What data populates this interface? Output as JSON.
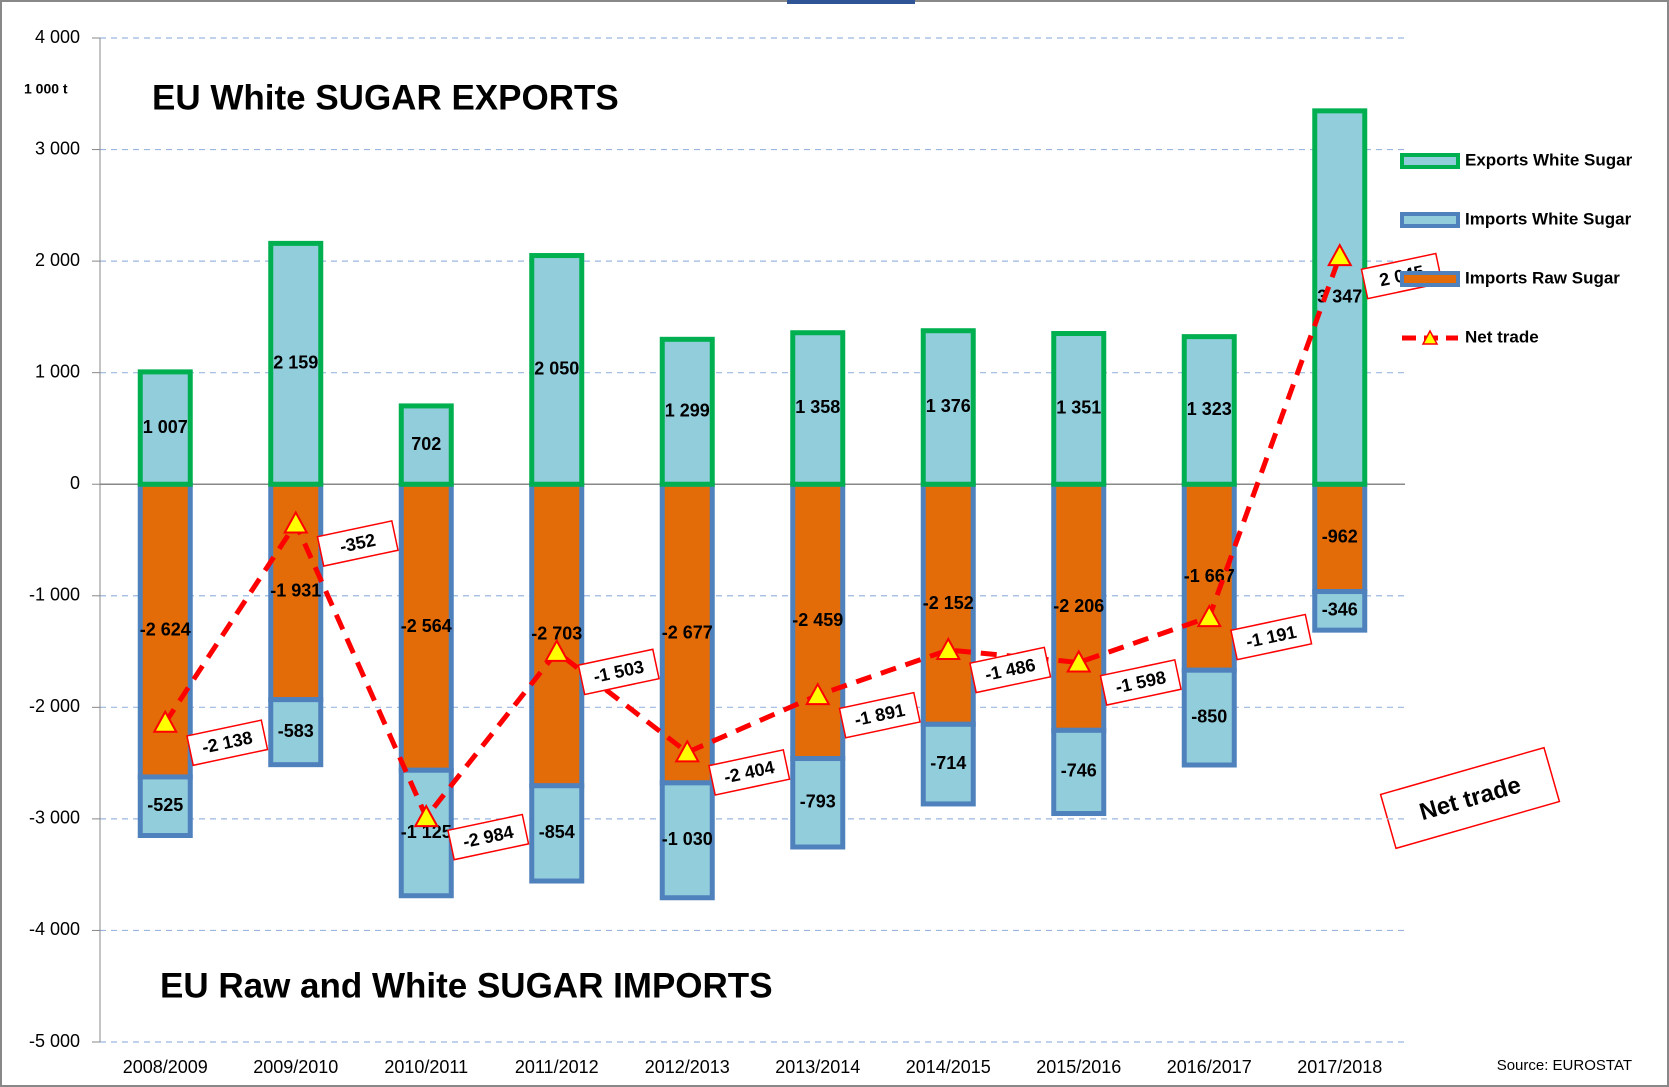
{
  "chart_data": {
    "type": "bar",
    "title": "EU White SUGAR EXPORTS",
    "subtitle": "EU Raw and White SUGAR IMPORTS",
    "unit_label": "1 000 t",
    "annotation": "Net trade",
    "source": "Source: EUROSTAT",
    "categories": [
      "2008/2009",
      "2009/2010",
      "2010/2011",
      "2011/2012",
      "2012/2013",
      "2013/2014",
      "2014/2015",
      "2015/2016",
      "2016/2017",
      "2017/2018"
    ],
    "series": [
      {
        "name": "Exports White Sugar",
        "type": "bar",
        "color": "#92cddc",
        "edgecolor": "#00b050",
        "values": [
          1007,
          2159,
          702,
          2050,
          1299,
          1358,
          1376,
          1351,
          1323,
          3347
        ],
        "value_labels": [
          "1 007",
          "2 159",
          "702",
          "2 050",
          "1 299",
          "1 358",
          "1 376",
          "1 351",
          "1 323",
          "3 347"
        ]
      },
      {
        "name": "Imports White Sugar",
        "type": "bar",
        "color": "#92cddc",
        "edgecolor": "#4f81bd",
        "values": [
          -525,
          -583,
          -1125,
          -854,
          -1030,
          -793,
          -714,
          -746,
          -850,
          -346
        ],
        "value_labels": [
          "-525",
          "-583",
          "-1 125",
          "-854",
          "-1 030",
          "-793",
          "-714",
          "-746",
          "-850",
          "-346"
        ]
      },
      {
        "name": "Imports Raw Sugar",
        "type": "bar",
        "color": "#e36c09",
        "edgecolor": "#4f81bd",
        "values": [
          -2624,
          -1931,
          -2564,
          -2703,
          -2677,
          -2459,
          -2152,
          -2206,
          -1667,
          -962
        ],
        "value_labels": [
          "-2 624",
          "-1 931",
          "-2 564",
          "-2 703",
          "-2 677",
          "-2 459",
          "-2 152",
          "-2 206",
          "-1 667",
          "-962"
        ]
      },
      {
        "name": "Net trade",
        "type": "line",
        "color": "#ff0000",
        "marker_color": "#ffff00",
        "values": [
          -2138,
          -352,
          -2984,
          -1503,
          -2404,
          -1891,
          -1486,
          -1598,
          -1191,
          2045
        ],
        "value_labels": [
          "-2 138",
          "-352",
          "-2 984",
          "-1 503",
          "-2 404",
          "-1 891",
          "-1 486",
          "-1 598",
          "-1 191",
          "2 045"
        ]
      }
    ],
    "ylim": [
      -5000,
      4000
    ],
    "yticks": [
      {
        "value": 4000,
        "label": "4 000"
      },
      {
        "value": 3000,
        "label": "3 000"
      },
      {
        "value": 2000,
        "label": "2 000"
      },
      {
        "value": 1000,
        "label": "1 000"
      },
      0,
      {
        "value": -1000,
        "label": "-1 000"
      },
      {
        "value": -2000,
        "label": "-2 000"
      },
      {
        "value": -3000,
        "label": "-3 000"
      },
      {
        "value": -4000,
        "label": "-4 000"
      },
      {
        "value": -5000,
        "label": "-5 000"
      }
    ],
    "grid": true,
    "legend": "right"
  }
}
